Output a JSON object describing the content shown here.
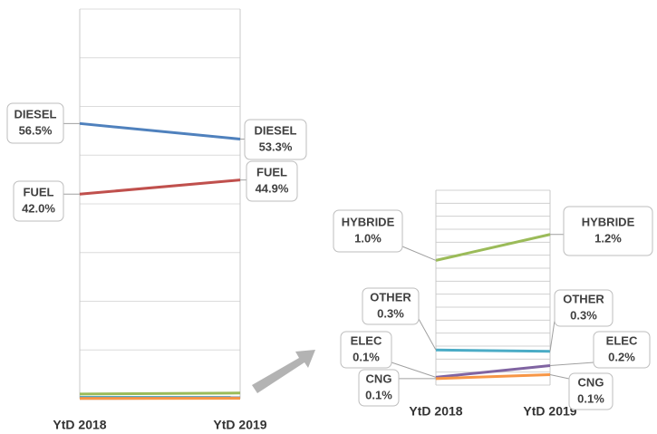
{
  "chart_data": [
    {
      "type": "slope",
      "categories": [
        "YtD 2018",
        "YtD 2019"
      ],
      "ylim": [
        0,
        80
      ],
      "yticks": [
        0,
        10,
        20,
        30,
        40,
        50,
        60,
        70,
        80
      ],
      "grid": true,
      "series": [
        {
          "name": "DIESEL",
          "color": "#4f81bd",
          "values": [
            56.5,
            53.3
          ],
          "value_labels": [
            "56.5%",
            "53.3%"
          ]
        },
        {
          "name": "FUEL",
          "color": "#c0504d",
          "values": [
            42.0,
            44.9
          ],
          "value_labels": [
            "42.0%",
            "44.9%"
          ]
        }
      ]
    },
    {
      "type": "slope",
      "categories": [
        "YtD 2018",
        "YtD 2019"
      ],
      "ylim": [
        0,
        1.5
      ],
      "yticks": [
        0,
        0.1,
        0.2,
        0.3,
        0.4,
        0.5,
        0.6,
        0.7,
        0.8,
        0.9,
        1.0,
        1.1,
        1.2,
        1.3,
        1.4,
        1.5
      ],
      "grid": true,
      "series": [
        {
          "name": "HYBRIDE",
          "color": "#9bbb59",
          "values": [
            0.96,
            1.16
          ],
          "value_labels": [
            "1.0%",
            "1.2%"
          ]
        },
        {
          "name": "OTHER",
          "color": "#4bacc6",
          "values": [
            0.27,
            0.26
          ],
          "value_labels": [
            "0.3%",
            "0.3%"
          ]
        },
        {
          "name": "ELEC",
          "color": "#8064a2",
          "values": [
            0.06,
            0.15
          ],
          "value_labels": [
            "0.1%",
            "0.2%"
          ]
        },
        {
          "name": "CNG",
          "color": "#f79646",
          "values": [
            0.05,
            0.08
          ],
          "value_labels": [
            "0.1%",
            "0.1%"
          ]
        }
      ]
    }
  ]
}
